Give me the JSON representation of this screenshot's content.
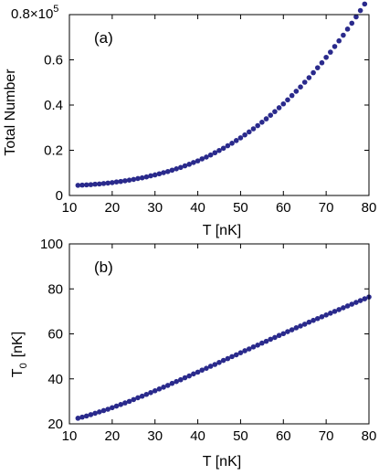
{
  "chart_data": [
    {
      "type": "scatter",
      "panel_label": "(a)",
      "xlabel": "T  [nK]",
      "ylabel": "Total Number",
      "y_multiplier": {
        "base": "0.8×10",
        "exponent": "5"
      },
      "xlim": [
        10,
        80
      ],
      "ylim": [
        0,
        0.8
      ],
      "xticks": [
        "10",
        "20",
        "30",
        "40",
        "50",
        "60",
        "70",
        "80"
      ],
      "yticks": [
        "0",
        "0.2",
        "0.4",
        "0.6"
      ],
      "grid": false,
      "marker_color": "#2a2a8c",
      "series": [
        {
          "x": [
            12,
            13,
            14,
            15,
            16,
            17,
            18,
            19,
            20,
            21,
            22,
            23,
            24,
            25,
            26,
            27,
            28,
            29,
            30,
            31,
            32,
            33,
            34,
            35,
            36,
            37,
            38,
            39,
            40,
            41,
            42,
            43,
            44,
            45,
            46,
            47,
            48,
            49,
            50,
            51,
            52,
            53,
            54,
            55,
            56,
            57,
            58,
            59,
            60,
            61,
            62,
            63,
            64,
            65,
            66,
            67,
            68,
            69,
            70,
            71,
            72,
            73,
            74,
            75,
            76,
            77,
            78,
            79,
            80
          ],
          "y": [
            0.045,
            0.046,
            0.047,
            0.048,
            0.05,
            0.051,
            0.053,
            0.055,
            0.057,
            0.06,
            0.062,
            0.065,
            0.068,
            0.071,
            0.075,
            0.078,
            0.082,
            0.087,
            0.091,
            0.096,
            0.101,
            0.106,
            0.112,
            0.118,
            0.124,
            0.131,
            0.138,
            0.146,
            0.153,
            0.162,
            0.17,
            0.179,
            0.189,
            0.199,
            0.209,
            0.22,
            0.231,
            0.243,
            0.255,
            0.268,
            0.281,
            0.295,
            0.309,
            0.324,
            0.339,
            0.355,
            0.371,
            0.388,
            0.405,
            0.423,
            0.442,
            0.461,
            0.48,
            0.501,
            0.521,
            0.543,
            0.565,
            0.587,
            0.611,
            0.634,
            0.659,
            0.684,
            0.709,
            0.736,
            0.762,
            0.79,
            0.818,
            0.847,
            0.876
          ]
        }
      ]
    },
    {
      "type": "scatter",
      "panel_label": "(b)",
      "xlabel": "T  [nK]",
      "ylabel_main": "T",
      "ylabel_sub": "0",
      "ylabel_units": "[nK]",
      "xlim": [
        10,
        80
      ],
      "ylim": [
        20,
        100
      ],
      "xticks": [
        "10",
        "20",
        "30",
        "40",
        "50",
        "60",
        "70",
        "80"
      ],
      "yticks": [
        "20",
        "40",
        "60",
        "80",
        "100"
      ],
      "grid": false,
      "marker_color": "#2a2a8c",
      "series": [
        {
          "x": [
            12,
            13,
            14,
            15,
            16,
            17,
            18,
            19,
            20,
            21,
            22,
            23,
            24,
            25,
            26,
            27,
            28,
            29,
            30,
            31,
            32,
            33,
            34,
            35,
            36,
            37,
            38,
            39,
            40,
            41,
            42,
            43,
            44,
            45,
            46,
            47,
            48,
            49,
            50,
            51,
            52,
            53,
            54,
            55,
            56,
            57,
            58,
            59,
            60,
            61,
            62,
            63,
            64,
            65,
            66,
            67,
            68,
            69,
            70,
            71,
            72,
            73,
            74,
            75,
            76,
            77,
            78,
            79,
            80
          ],
          "y": [
            22.5,
            23.0,
            23.5,
            24.1,
            24.7,
            25.3,
            25.9,
            26.5,
            27.2,
            27.9,
            28.6,
            29.3,
            30.0,
            30.8,
            31.6,
            32.3,
            33.1,
            33.9,
            34.7,
            35.5,
            36.3,
            37.1,
            38.0,
            38.8,
            39.6,
            40.5,
            41.3,
            42.2,
            43.0,
            43.9,
            44.7,
            45.6,
            46.4,
            47.3,
            48.2,
            49.0,
            49.9,
            50.7,
            51.6,
            52.5,
            53.3,
            54.2,
            55.0,
            55.9,
            56.7,
            57.6,
            58.4,
            59.3,
            60.1,
            61.0,
            61.8,
            62.7,
            63.5,
            64.3,
            65.2,
            66.0,
            66.8,
            67.6,
            68.4,
            69.2,
            70.0,
            70.8,
            71.6,
            72.4,
            73.2,
            74.0,
            74.8,
            75.6,
            76.4
          ]
        }
      ]
    }
  ]
}
